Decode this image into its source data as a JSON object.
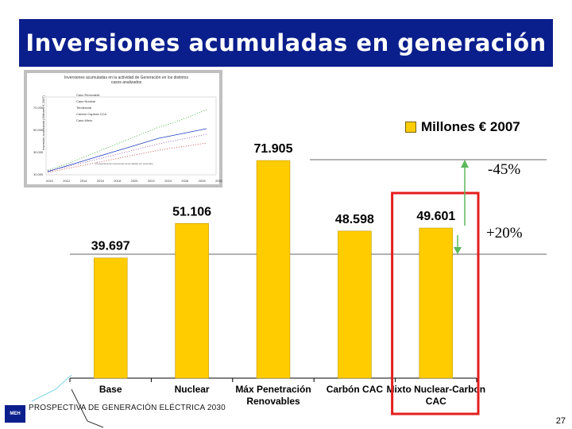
{
  "title": "Inversiones acumuladas en generación",
  "legend": {
    "label": "Millones € 2007"
  },
  "annotations": {
    "minus": "-45%",
    "plus": "+20%"
  },
  "footer": "PROSPECTIVA DE GENERACIÓN ELÉCTRICA 2030",
  "page_number": "27",
  "logo_text": "MEH",
  "colors": {
    "title_bg": "#0a1e8c",
    "bar": "#ffcc00",
    "highlight": "#e41e1e",
    "arrow": "#5cb85c"
  },
  "thumbnail": {
    "title": "Inversiones acumuladas en la actividad de Generación en los distintos casos analizados",
    "legend": [
      "Caso Renovable",
      "Caso Nuclear",
      "Tendencial",
      "Carbón Captura CCA",
      "Caso Mixto"
    ],
    "ylabel": "Inversión acumulada (Millones € 2007)",
    "yticks": [
      "70.000",
      "50.000",
      "30.000",
      "10.000"
    ],
    "xticks": [
      "2010",
      "2012",
      "2014",
      "2016",
      "2018",
      "2020",
      "2022",
      "2024",
      "2026",
      "2028",
      "2030"
    ],
    "note": "Cronograma de inversiones acumuladas por escenario"
  },
  "chart_data": {
    "type": "bar",
    "categories": [
      "Base",
      "Nuclear",
      "Máx Penetración Renovables",
      "Carbón CAC",
      "Mixto Nuclear-Carbon CAC"
    ],
    "values": [
      39697,
      51106,
      71905,
      48598,
      49601
    ],
    "labels": [
      "39.697",
      "51.106",
      "71.905",
      "48.598",
      "49.601"
    ],
    "series_name": "Millones € 2007",
    "highlight_index": 4,
    "ylim": [
      0,
      80000
    ]
  }
}
